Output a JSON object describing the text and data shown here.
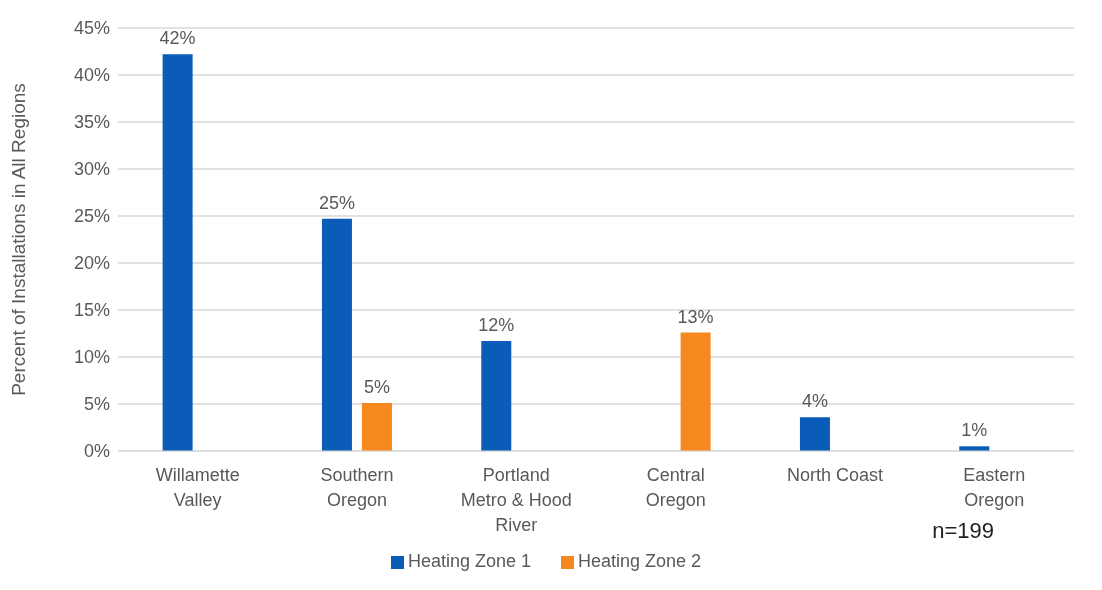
{
  "chart_data": {
    "type": "bar",
    "ylabel": "Percent of Installations in All Regions",
    "categories": [
      "Willamette Valley",
      "Southern Oregon",
      "Portland Metro & Hood River",
      "Central Oregon",
      "North Coast",
      "Eastern Oregon"
    ],
    "series": [
      {
        "name": "Heating Zone 1",
        "color": "#0a5cb8",
        "values": [
          42.2,
          24.7,
          11.7,
          null,
          3.6,
          0.5
        ],
        "value_labels": [
          "42%",
          "25%",
          "12%",
          null,
          "4%",
          "1%"
        ]
      },
      {
        "name": "Heating Zone 2",
        "color": "#f5891f",
        "values": [
          null,
          5.1,
          null,
          12.6,
          null,
          null
        ],
        "value_labels": [
          null,
          "5%",
          null,
          "13%",
          null,
          null
        ]
      }
    ],
    "ylim": [
      0,
      45
    ],
    "yticks": [
      {
        "value": 0,
        "label": "0%"
      },
      {
        "value": 5,
        "label": "5%"
      },
      {
        "value": 10,
        "label": "10%"
      },
      {
        "value": 15,
        "label": "15%"
      },
      {
        "value": 20,
        "label": "20%"
      },
      {
        "value": 25,
        "label": "25%"
      },
      {
        "value": 30,
        "label": "30%"
      },
      {
        "value": 35,
        "label": "35%"
      },
      {
        "value": 40,
        "label": "40%"
      },
      {
        "value": 45,
        "label": "45%"
      }
    ],
    "grid": "y",
    "legend": "bottom",
    "annotations": [
      "n=199"
    ]
  }
}
